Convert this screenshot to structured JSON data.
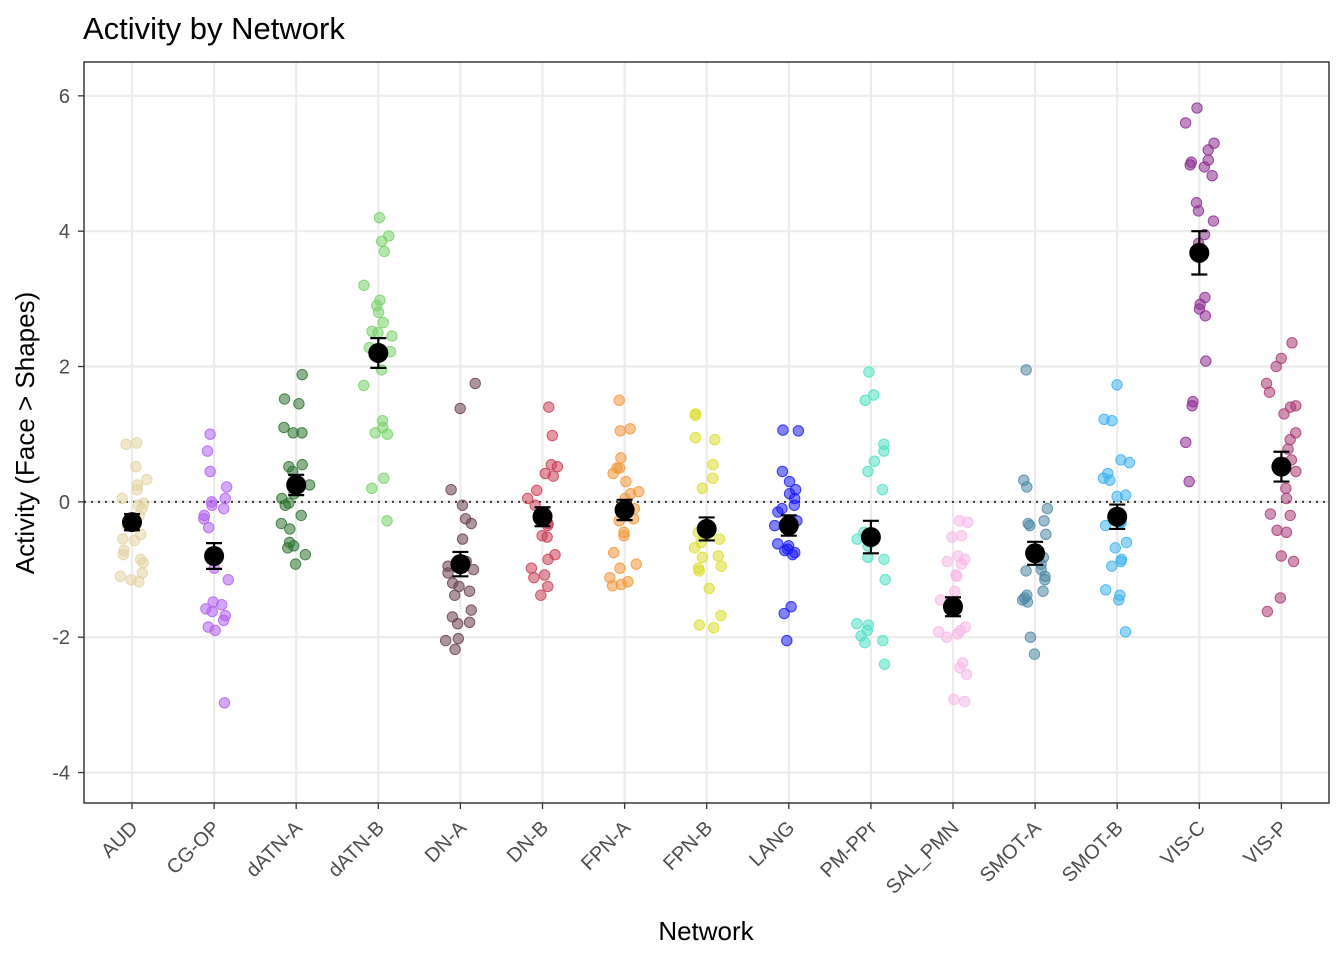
{
  "chart_data": {
    "type": "scatter",
    "title": "Activity by Network",
    "xlabel": "Network",
    "ylabel": "Activity (Face > Shapes)",
    "ylim": [
      -4.45,
      6.5
    ],
    "y_ticks": [
      -4,
      -2,
      0,
      2,
      4,
      6
    ],
    "y_tick_labels": [
      "-4",
      "-2",
      "0",
      "2",
      "4",
      "6"
    ],
    "grid": true,
    "reference_line": 0,
    "legend": "none",
    "summary_marker_color": "#000000",
    "categories": [
      "AUD",
      "CG-OP",
      "dATN-A",
      "dATN-B",
      "DN-A",
      "DN-B",
      "FPN-A",
      "FPN-B",
      "LANG",
      "PM-PPr",
      "SAL_PMN",
      "SMOT-A",
      "SMOT-B",
      "VIS-C",
      "VIS-P"
    ],
    "series": [
      {
        "category": "AUD",
        "color": "#e3d3a2",
        "mean": -0.3,
        "se_low": -0.42,
        "se_high": -0.18,
        "points": [
          0.87,
          0.85,
          0.52,
          0.33,
          0.25,
          0.18,
          0.05,
          -0.02,
          -0.05,
          -0.1,
          -0.2,
          -0.35,
          -0.48,
          -0.55,
          -0.57,
          -0.72,
          -0.78,
          -0.85,
          -0.9,
          -1.05,
          -1.1,
          -1.15,
          -1.18
        ]
      },
      {
        "category": "CG-OP",
        "color": "#b25ff2",
        "mean": -0.8,
        "se_low": -0.99,
        "se_high": -0.61,
        "points": [
          1.0,
          0.75,
          0.45,
          0.22,
          0.05,
          0.0,
          -0.05,
          -0.1,
          -0.2,
          -0.25,
          -0.38,
          -0.78,
          -0.98,
          -1.15,
          -1.48,
          -1.52,
          -1.58,
          -1.62,
          -1.68,
          -1.75,
          -1.85,
          -1.9,
          -2.97
        ]
      },
      {
        "category": "dATN-A",
        "color": "#2f7532",
        "mean": 0.25,
        "se_low": 0.1,
        "se_high": 0.4,
        "points": [
          1.88,
          1.52,
          1.45,
          1.1,
          1.02,
          1.02,
          0.55,
          0.52,
          0.45,
          0.3,
          0.28,
          0.25,
          0.12,
          0.05,
          -0.02,
          -0.05,
          -0.2,
          -0.32,
          -0.4,
          -0.6,
          -0.65,
          -0.68,
          -0.78,
          -0.92
        ]
      },
      {
        "category": "dATN-B",
        "color": "#79d16a",
        "mean": 2.2,
        "se_low": 1.98,
        "se_high": 2.42,
        "points": [
          4.2,
          3.93,
          3.85,
          3.7,
          3.2,
          2.98,
          2.9,
          2.8,
          2.65,
          2.52,
          2.5,
          2.45,
          2.28,
          2.25,
          2.22,
          1.95,
          1.72,
          1.2,
          1.1,
          1.02,
          1.0,
          0.35,
          0.2,
          -0.28
        ]
      },
      {
        "category": "DN-A",
        "color": "#6b3f4e",
        "mean": -0.92,
        "se_low": -1.1,
        "se_high": -0.74,
        "points": [
          1.75,
          1.38,
          0.18,
          -0.05,
          -0.25,
          -0.32,
          -0.55,
          -0.88,
          -0.95,
          -1.0,
          -1.05,
          -1.2,
          -1.25,
          -1.32,
          -1.38,
          -1.6,
          -1.7,
          -1.78,
          -1.8,
          -2.02,
          -2.05,
          -2.18
        ]
      },
      {
        "category": "DN-B",
        "color": "#c93f56",
        "mean": -0.22,
        "se_low": -0.36,
        "se_high": -0.08,
        "points": [
          1.4,
          0.98,
          0.55,
          0.52,
          0.42,
          0.38,
          0.17,
          0.05,
          -0.05,
          -0.15,
          -0.2,
          -0.32,
          -0.35,
          -0.5,
          -0.52,
          -0.78,
          -0.85,
          -0.98,
          -1.08,
          -1.12,
          -1.25,
          -1.38
        ]
      },
      {
        "category": "FPN-A",
        "color": "#f2963b",
        "mean": -0.12,
        "se_low": -0.27,
        "se_high": 0.03,
        "points": [
          1.5,
          1.08,
          1.05,
          0.65,
          0.5,
          0.5,
          0.42,
          0.3,
          0.15,
          0.12,
          0.05,
          -0.1,
          -0.25,
          -0.28,
          -0.45,
          -0.5,
          -0.75,
          -0.92,
          -0.98,
          -1.12,
          -1.18,
          -1.22,
          -1.24
        ]
      },
      {
        "category": "FPN-B",
        "color": "#dddd2f",
        "mean": -0.4,
        "se_low": -0.57,
        "se_high": -0.23,
        "points": [
          1.3,
          1.28,
          0.95,
          0.92,
          0.55,
          0.35,
          0.2,
          -0.45,
          -0.5,
          -0.55,
          -0.6,
          -0.68,
          -0.8,
          -0.82,
          -0.95,
          -0.98,
          -1.02,
          -1.28,
          -1.68,
          -1.82,
          -1.86
        ]
      },
      {
        "category": "LANG",
        "color": "#1c1cf5",
        "mean": -0.35,
        "se_low": -0.5,
        "se_high": -0.2,
        "points": [
          1.06,
          1.05,
          0.45,
          0.3,
          0.18,
          0.12,
          0.05,
          -0.05,
          -0.1,
          -0.15,
          -0.28,
          -0.35,
          -0.62,
          -0.65,
          -0.7,
          -0.72,
          -0.75,
          -0.78,
          -1.55,
          -1.65,
          -2.05
        ]
      },
      {
        "category": "PM-PPr",
        "color": "#51e0c7",
        "mean": -0.52,
        "se_low": -0.76,
        "se_high": -0.28,
        "points": [
          1.92,
          1.58,
          1.5,
          0.85,
          0.75,
          0.6,
          0.45,
          0.18,
          -0.45,
          -0.55,
          -0.65,
          -0.82,
          -0.85,
          -1.15,
          -1.8,
          -1.82,
          -1.9,
          -1.98,
          -2.05,
          -2.08,
          -2.4
        ]
      },
      {
        "category": "SAL_PMN",
        "color": "#f7b8e8",
        "mean": -1.55,
        "se_low": -1.69,
        "se_high": -1.41,
        "points": [
          -0.28,
          -0.3,
          -0.5,
          -0.52,
          -0.8,
          -0.85,
          -0.88,
          -0.92,
          -1.08,
          -1.1,
          -1.32,
          -1.45,
          -1.85,
          -1.9,
          -1.92,
          -1.95,
          -2.0,
          -2.38,
          -2.45,
          -2.55,
          -2.92,
          -2.95
        ]
      },
      {
        "category": "SMOT-A",
        "color": "#4f88a6",
        "mean": -0.76,
        "se_low": -0.93,
        "se_high": -0.59,
        "points": [
          1.95,
          0.32,
          0.22,
          -0.1,
          -0.28,
          -0.32,
          -0.35,
          -0.48,
          -0.82,
          -0.92,
          -1.0,
          -1.02,
          -1.1,
          -1.15,
          -1.32,
          -1.38,
          -1.42,
          -1.45,
          -1.48,
          -2.0,
          -2.25
        ]
      },
      {
        "category": "SMOT-B",
        "color": "#3fb2ee",
        "mean": -0.22,
        "se_low": -0.4,
        "se_high": -0.04,
        "points": [
          1.73,
          1.22,
          1.2,
          0.62,
          0.58,
          0.42,
          0.35,
          0.32,
          0.1,
          0.08,
          -0.3,
          -0.32,
          -0.35,
          -0.6,
          -0.68,
          -0.85,
          -0.88,
          -0.95,
          -1.3,
          -1.38,
          -1.45,
          -1.92
        ]
      },
      {
        "category": "VIS-C",
        "color": "#8c2c92",
        "mean": 3.68,
        "se_low": 3.36,
        "se_high": 4.0,
        "points": [
          5.82,
          5.6,
          5.3,
          5.2,
          5.05,
          5.02,
          4.98,
          4.95,
          4.82,
          4.42,
          4.3,
          4.15,
          3.95,
          3.82,
          3.02,
          2.92,
          2.85,
          2.75,
          2.08,
          1.48,
          1.42,
          0.88,
          0.3
        ]
      },
      {
        "category": "VIS-P",
        "color": "#ac3b74",
        "mean": 0.52,
        "se_low": 0.3,
        "se_high": 0.74,
        "points": [
          2.35,
          2.12,
          2.0,
          1.75,
          1.62,
          1.42,
          1.4,
          1.3,
          1.02,
          0.92,
          0.78,
          0.62,
          0.45,
          0.2,
          0.05,
          -0.18,
          -0.2,
          -0.42,
          -0.45,
          -0.8,
          -0.88,
          -1.42,
          -1.62
        ]
      }
    ]
  }
}
